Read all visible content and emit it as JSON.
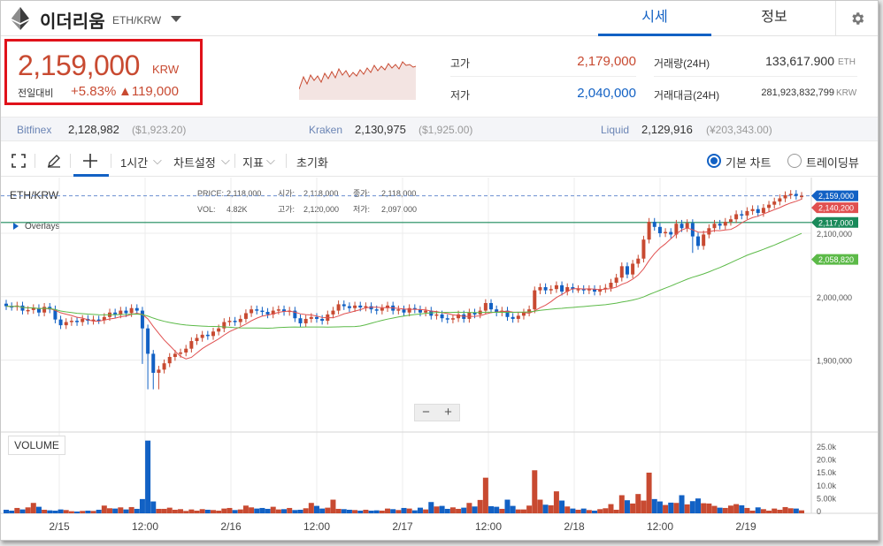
{
  "header": {
    "coin_name": "이더리움",
    "pair": "ETH/KRW",
    "tabs": [
      {
        "label": "시세"
      },
      {
        "label": "정보"
      }
    ]
  },
  "price": {
    "current": "2,159,000",
    "unit": "KRW",
    "change_label": "전일대비",
    "change_rate": "+5.83%",
    "change_amount": "▲119,000"
  },
  "stats": {
    "high_label": "고가",
    "high_value": "2,179,000",
    "low_label": "저가",
    "low_value": "2,040,000",
    "volume_label": "거래량(24H)",
    "volume_value": "133,617.900",
    "volume_unit": "ETH",
    "amount_label": "거래대금(24H)",
    "amount_value": "281,923,832,799",
    "amount_unit": "KRW"
  },
  "exchanges": [
    {
      "name": "Bitfinex",
      "price": "2,128,982",
      "usd": "($1,923.20)"
    },
    {
      "name": "Kraken",
      "price": "2,130,975",
      "usd": "($1,925.00)"
    },
    {
      "name": "Liquid",
      "price": "2,129,916",
      "usd": "(¥203,343.00)"
    }
  ],
  "toolbar": {
    "interval": "1시간",
    "chart_settings": "차트설정",
    "indicators": "지표",
    "reset": "초기화",
    "basic_chart": "기본 차트",
    "tradingview": "트레이딩뷰"
  },
  "chart_info": {
    "symbol": "ETH/KRW",
    "overlays": "Overlays",
    "price_label": "PRICE:",
    "price_val": "2,118,000",
    "open_label": "시가:",
    "open_val": "2,118,000",
    "close_label": "종가:",
    "close_val": "2,118,000",
    "vol_label": "VOL:",
    "vol_val": "4.82K",
    "high_label": "고가:",
    "high_val": "2,120,000",
    "low_label": "저가:",
    "low_val": "2,097,000",
    "volume_panel": "VOLUME"
  },
  "colors": {
    "up": "#c84a31",
    "down": "#1261c4",
    "ma_short": "#e05050",
    "ma_long": "#5cba48",
    "accent": "#1261c4",
    "highlight_border": "#e0121a"
  },
  "chart_data": {
    "type": "candlestick",
    "price_axis": {
      "ticks": [
        "2,100,000",
        "2,000,000",
        "1,900,000"
      ],
      "tick_values": [
        2100000,
        2000000,
        1900000
      ]
    },
    "volume_axis": {
      "ticks": [
        "25.0k",
        "20.0k",
        "15.0k",
        "10.0k",
        "5.00k",
        "0"
      ]
    },
    "x_ticks": [
      "2/15",
      "12:00",
      "2/16",
      "12:00",
      "2/17",
      "12:00",
      "2/18",
      "12:00",
      "2/19"
    ],
    "markers": [
      {
        "label": "2,159,000",
        "value": 2159000,
        "color": "#1261c4"
      },
      {
        "label": "2,140,200",
        "value": 2140200,
        "color": "#e05050"
      },
      {
        "label": "2,117,000",
        "value": 2117000,
        "color": "#1a8a5a"
      },
      {
        "label": "2,058,820",
        "value": 2058820,
        "color": "#5cba48"
      }
    ],
    "closes": [
      1985000,
      1984000,
      1986000,
      1978000,
      1979000,
      1982000,
      1975000,
      1984000,
      1980000,
      1964000,
      1955000,
      1960000,
      1962000,
      1960000,
      1965000,
      1962000,
      1964000,
      1963000,
      1968000,
      1975000,
      1972000,
      1978000,
      1974000,
      1982000,
      1978000,
      1950000,
      1910000,
      1880000,
      1885000,
      1895000,
      1905000,
      1910000,
      1912000,
      1918000,
      1930000,
      1935000,
      1940000,
      1938000,
      1945000,
      1950000,
      1960000,
      1962000,
      1960000,
      1965000,
      1974000,
      1980000,
      1978000,
      1976000,
      1972000,
      1978000,
      1980000,
      1976000,
      1978000,
      1966000,
      1958000,
      1965000,
      1968000,
      1965000,
      1962000,
      1972000,
      1978000,
      1988000,
      1985000,
      1982000,
      1986000,
      1983000,
      1985000,
      1980000,
      1978000,
      1982000,
      1986000,
      1978000,
      1980000,
      1975000,
      1982000,
      1980000,
      1975000,
      1978000,
      1970000,
      1972000,
      1966000,
      1964000,
      1966000,
      1972000,
      1965000,
      1975000,
      1972000,
      1978000,
      1990000,
      1980000,
      1975000,
      1978000,
      1968000,
      1965000,
      1970000,
      1975000,
      1980000,
      2010000,
      2015000,
      2010000,
      2012000,
      2018000,
      2008000,
      2015000,
      2012000,
      2012000,
      2010000,
      2012000,
      2008000,
      2012000,
      2014000,
      2022000,
      2030000,
      2048000,
      2035000,
      2052000,
      2060000,
      2090000,
      2118000,
      2110000,
      2100000,
      2102000,
      2098000,
      2115000,
      2108000,
      2116000,
      2095000,
      2080000,
      2098000,
      2108000,
      2115000,
      2112000,
      2118000,
      2122000,
      2130000,
      2128000,
      2135000,
      2138000,
      2132000,
      2140000,
      2145000,
      2150000,
      2155000,
      2160000,
      2162000,
      2159000,
      2159000
    ],
    "volumes": [
      1200,
      900,
      1800,
      1300,
      2000,
      3500,
      2200,
      1200,
      1000,
      900,
      1300,
      1100,
      700,
      600,
      800,
      900,
      800,
      1200,
      2600,
      1700,
      1600,
      2000,
      1300,
      2100,
      1500,
      4800,
      24500,
      4000,
      1500,
      1500,
      1900,
      1200,
      1400,
      800,
      1300,
      900,
      1400,
      1200,
      1100,
      900,
      1600,
      1800,
      1100,
      1300,
      2600,
      2000,
      1600,
      1800,
      1500,
      2200,
      1300,
      1400,
      1800,
      1100,
      1200,
      1700,
      3500,
      2500,
      1600,
      1900,
      4600,
      1500,
      1400,
      1200,
      1100,
      900,
      1200,
      900,
      1000,
      900,
      1600,
      1400,
      1100,
      1800,
      1600,
      1000,
      1900,
      1300,
      3800,
      2300,
      2500,
      1500,
      2000,
      1500,
      1900,
      3500,
      2300,
      4500,
      12000,
      2400,
      2200,
      1500,
      4600,
      2500,
      1300,
      1300,
      2600,
      14500,
      4600,
      2900,
      2700,
      7400,
      4300,
      2300,
      1600,
      1200,
      1600,
      1100,
      900,
      1400,
      1700,
      3100,
      1200,
      6100,
      4400,
      3300,
      6500,
      4300,
      13700,
      4800,
      4000,
      2800,
      3600,
      3500,
      6100,
      3000,
      4100,
      5000,
      3400,
      3300,
      2500,
      1900,
      1800,
      2600,
      3100,
      2700,
      1800,
      900,
      2000,
      1400,
      900,
      1600,
      1200,
      2100,
      1700,
      1600,
      1000
    ]
  }
}
